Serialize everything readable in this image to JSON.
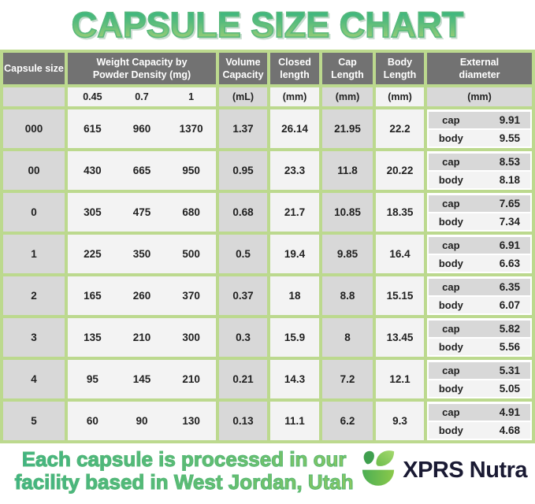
{
  "title": "CAPSULE SIZE CHART",
  "colors": {
    "title_gradient_top": "#2eb380",
    "title_gradient_bottom": "#a8d175",
    "table_border_green": "#bcd98e",
    "header_gray": "#727272",
    "cell_gray": "#d8d8d8",
    "cell_light": "#f3f3f3",
    "footer_gradient_left": "#3db386",
    "footer_gradient_right": "#8cc75f",
    "brand_navy": "#1a1a33"
  },
  "table": {
    "columns": {
      "capsule_size": {
        "label": "Capsule size",
        "sub": ""
      },
      "weight_capacity": {
        "label": "Weight Capacity by Powder Density (mg)",
        "densities": [
          "0.45",
          "0.7",
          "1"
        ]
      },
      "volume_capacity": {
        "label": "Volume Capacity",
        "unit": "(mL)"
      },
      "closed_length": {
        "label": "Closed length",
        "unit": "(mm)"
      },
      "cap_length": {
        "label": "Cap Length",
        "unit": "(mm)"
      },
      "body_length": {
        "label": "Body Length",
        "unit": "(mm)"
      },
      "external_diameter": {
        "label": "External diameter",
        "unit": "(mm)",
        "sub_labels": [
          "cap",
          "body"
        ]
      }
    },
    "rows": [
      {
        "size": "000",
        "weights": [
          "615",
          "960",
          "1370"
        ],
        "volume": "1.37",
        "closed": "26.14",
        "cap_len": "21.95",
        "body_len": "22.2",
        "ext_cap": "9.91",
        "ext_body": "9.55"
      },
      {
        "size": "00",
        "weights": [
          "430",
          "665",
          "950"
        ],
        "volume": "0.95",
        "closed": "23.3",
        "cap_len": "11.8",
        "body_len": "20.22",
        "ext_cap": "8.53",
        "ext_body": "8.18"
      },
      {
        "size": "0",
        "weights": [
          "305",
          "475",
          "680"
        ],
        "volume": "0.68",
        "closed": "21.7",
        "cap_len": "10.85",
        "body_len": "18.35",
        "ext_cap": "7.65",
        "ext_body": "7.34"
      },
      {
        "size": "1",
        "weights": [
          "225",
          "350",
          "500"
        ],
        "volume": "0.5",
        "closed": "19.4",
        "cap_len": "9.85",
        "body_len": "16.4",
        "ext_cap": "6.91",
        "ext_body": "6.63"
      },
      {
        "size": "2",
        "weights": [
          "165",
          "260",
          "370"
        ],
        "volume": "0.37",
        "closed": "18",
        "cap_len": "8.8",
        "body_len": "15.15",
        "ext_cap": "6.35",
        "ext_body": "6.07"
      },
      {
        "size": "3",
        "weights": [
          "135",
          "210",
          "300"
        ],
        "volume": "0.3",
        "closed": "15.9",
        "cap_len": "8",
        "body_len": "13.45",
        "ext_cap": "5.82",
        "ext_body": "5.56"
      },
      {
        "size": "4",
        "weights": [
          "95",
          "145",
          "210"
        ],
        "volume": "0.21",
        "closed": "14.3",
        "cap_len": "7.2",
        "body_len": "12.1",
        "ext_cap": "5.31",
        "ext_body": "5.05"
      },
      {
        "size": "5",
        "weights": [
          "60",
          "90",
          "130"
        ],
        "volume": "0.13",
        "closed": "11.1",
        "cap_len": "6.2",
        "body_len": "9.3",
        "ext_cap": "4.91",
        "ext_body": "4.68"
      }
    ]
  },
  "footer": {
    "note_line1": "Each capsule is processed in our",
    "note_line2": "facility based in West Jordan, Utah",
    "brand": "XPRS Nutra"
  },
  "chart_data": {
    "type": "table",
    "title": "CAPSULE SIZE CHART",
    "columns": [
      "Capsule size",
      "Weight Capacity at Powder Density 0.45 (mg)",
      "Weight Capacity at Powder Density 0.7 (mg)",
      "Weight Capacity at Powder Density 1 (mg)",
      "Volume Capacity (mL)",
      "Closed length (mm)",
      "Cap Length (mm)",
      "Body Length (mm)",
      "External diameter cap (mm)",
      "External diameter body (mm)"
    ],
    "rows": [
      [
        "000",
        615,
        960,
        1370,
        1.37,
        26.14,
        21.95,
        22.2,
        9.91,
        9.55
      ],
      [
        "00",
        430,
        665,
        950,
        0.95,
        23.3,
        11.8,
        20.22,
        8.53,
        8.18
      ],
      [
        "0",
        305,
        475,
        680,
        0.68,
        21.7,
        10.85,
        18.35,
        7.65,
        7.34
      ],
      [
        "1",
        225,
        350,
        500,
        0.5,
        19.4,
        9.85,
        16.4,
        6.91,
        6.63
      ],
      [
        "2",
        165,
        260,
        370,
        0.37,
        18,
        8.8,
        15.15,
        6.35,
        6.07
      ],
      [
        "3",
        135,
        210,
        300,
        0.3,
        15.9,
        8,
        13.45,
        5.82,
        5.56
      ],
      [
        "4",
        95,
        145,
        210,
        0.21,
        14.3,
        7.2,
        12.1,
        5.31,
        5.05
      ],
      [
        "5",
        60,
        90,
        130,
        0.13,
        11.1,
        6.2,
        9.3,
        4.91,
        4.68
      ]
    ]
  }
}
